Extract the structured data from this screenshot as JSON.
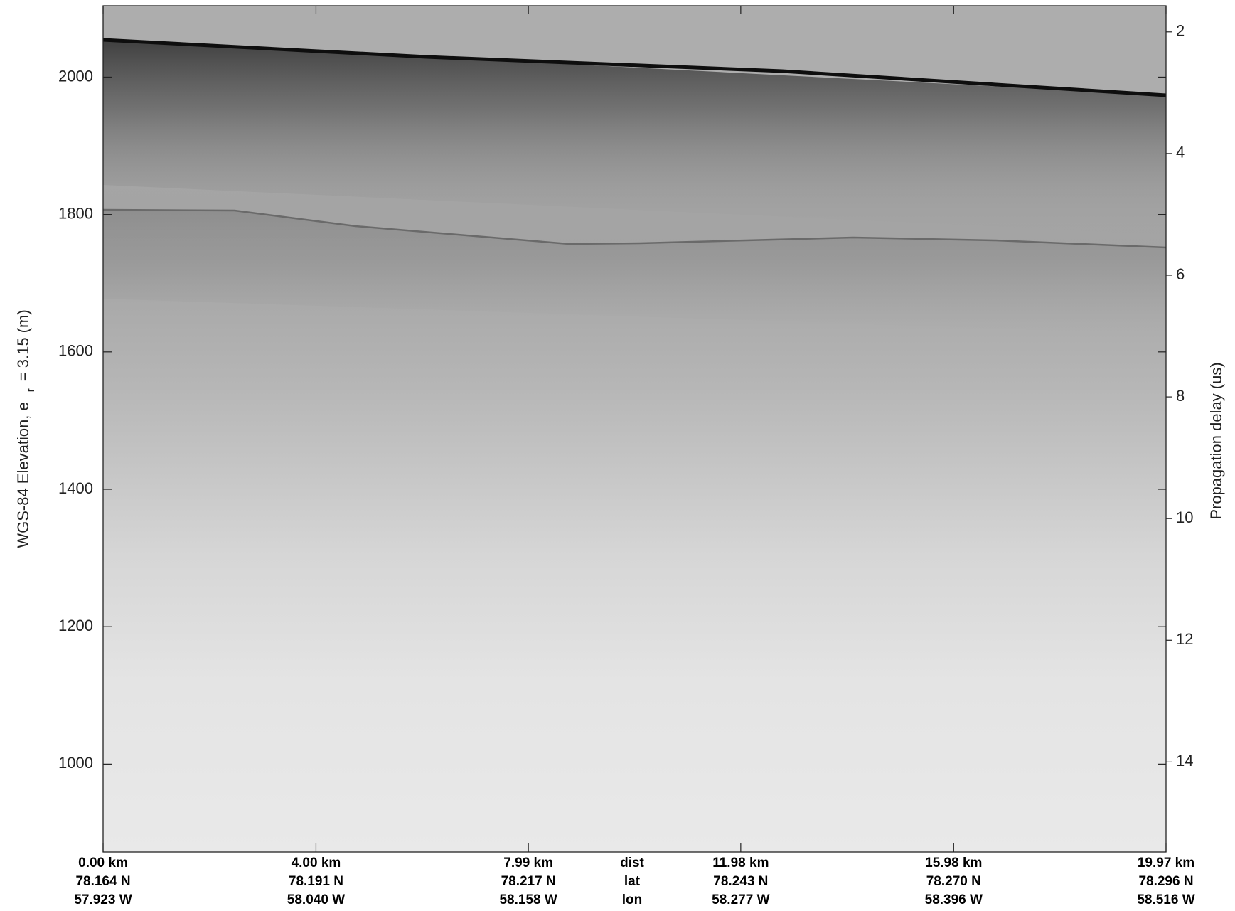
{
  "chart_data": {
    "type": "echogram",
    "ylabel": "WGS-84 Elevation, e",
    "ylabel_sub": "r",
    "ylabel_end": "= 3.15 (m)",
    "y2label": "Propagation delay (us)",
    "ylim": [
      872,
      2104
    ],
    "yticks": [
      1000,
      1200,
      1400,
      1600,
      1800,
      2000
    ],
    "y2lim": [
      15.48,
      1.57
    ],
    "y2ticks": [
      2,
      4,
      6,
      8,
      10,
      12,
      14
    ],
    "xlim": [
      0,
      19.97
    ],
    "xticks": [
      {
        "value": 0,
        "label": "0.00 km"
      },
      {
        "value": 4.0,
        "label": "4.00 km"
      },
      {
        "value": 7.99,
        "label": "7.99 km"
      },
      {
        "value": 11.98,
        "label": "11.98 km"
      },
      {
        "value": 15.98,
        "label": "15.98 km"
      },
      {
        "value": 19.97,
        "label": "19.97 km"
      }
    ],
    "lat_labels": [
      "78.164 N",
      "78.191 N",
      "78.217 N",
      "78.243 N",
      "78.270 N",
      "78.296 N"
    ],
    "lon_labels": [
      "57.923 W",
      "58.040 W",
      "58.158 W",
      "58.277 W",
      "58.396 W",
      "58.516 W"
    ],
    "row_labels": [
      "dist",
      "lat",
      "lon"
    ]
  }
}
